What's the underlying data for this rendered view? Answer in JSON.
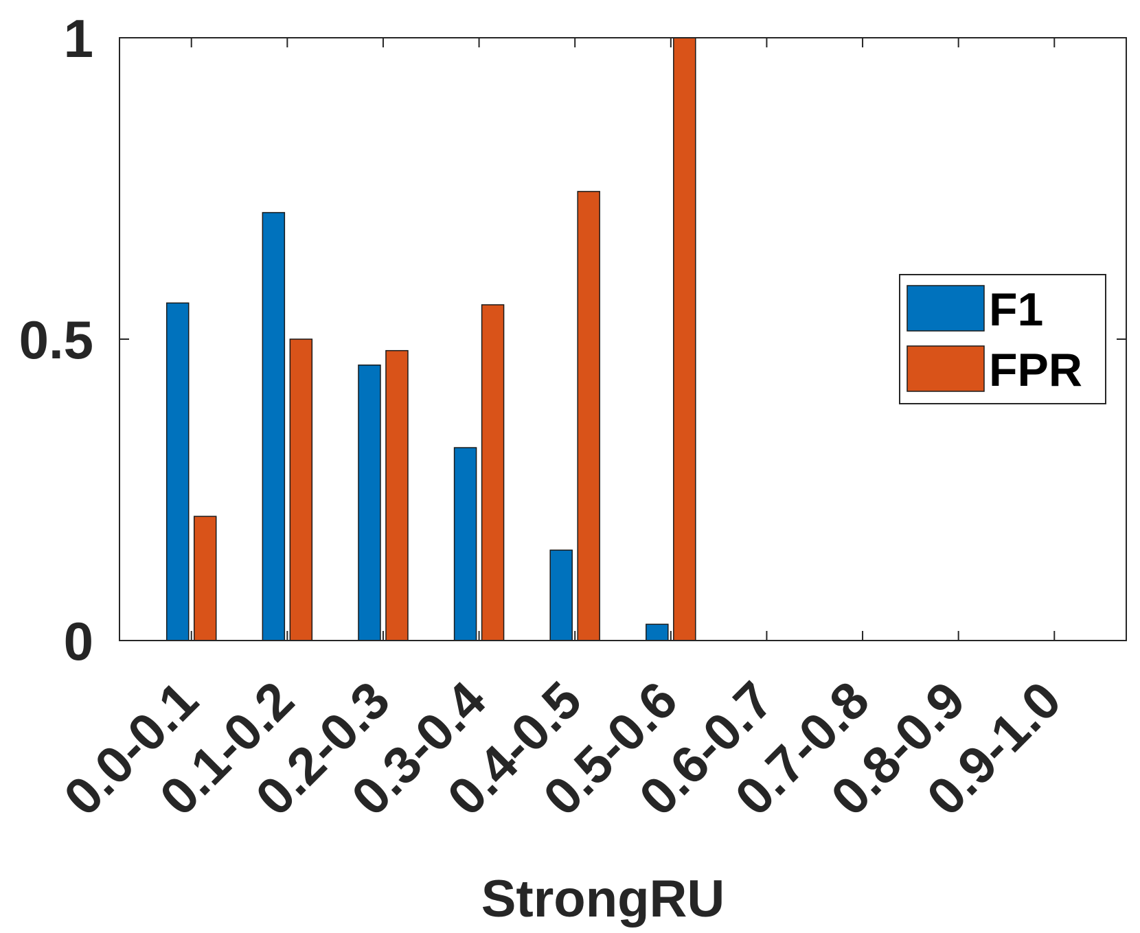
{
  "chart_data": {
    "type": "bar",
    "xlabel": "StrongRU",
    "ylabel": "",
    "ylim": [
      0,
      1
    ],
    "yticks": [
      0,
      0.5,
      1
    ],
    "ytick_labels": [
      "0",
      "0.5",
      "1"
    ],
    "categories": [
      "0.0-0.1",
      "0.1-0.2",
      "0.2-0.3",
      "0.3-0.4",
      "0.4-0.5",
      "0.5-0.6",
      "0.6-0.7",
      "0.7-0.8",
      "0.8-0.9",
      "0.9-1.0"
    ],
    "series": [
      {
        "name": "F1",
        "color": "#0072BD",
        "values": [
          0.56,
          0.71,
          0.457,
          0.32,
          0.15,
          0.027,
          0,
          0,
          0,
          0
        ]
      },
      {
        "name": "FPR",
        "color": "#D95319",
        "values": [
          0.206,
          0.5,
          0.481,
          0.557,
          0.745,
          1.0,
          0,
          0,
          0,
          0
        ]
      }
    ],
    "grid": false,
    "legend": {
      "position": "right",
      "entries": [
        "F1",
        "FPR"
      ]
    }
  }
}
